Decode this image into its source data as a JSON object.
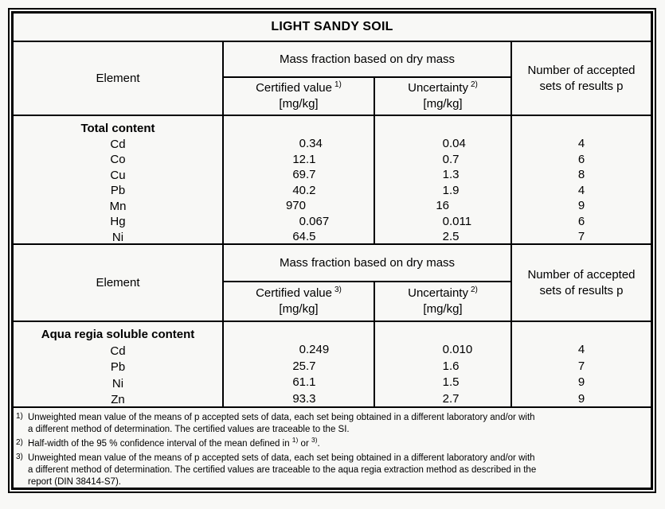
{
  "page": {
    "background": "#f8f8f6",
    "border_color": "#000000"
  },
  "title": "LIGHT SANDY SOIL",
  "sections": [
    {
      "element_label": "Element",
      "mass_fraction_label": "Mass fraction based on dry mass",
      "accepted_line1": "Number of accepted",
      "accepted_line2": "sets of results p",
      "certified_label": "Certified value",
      "certified_sup": "1)",
      "uncertainty_label": "Uncertainty",
      "uncertainty_sup": "2)",
      "unit": "[mg/kg]",
      "group_label": "Total content",
      "rows": [
        {
          "element": "Cd",
          "certified": "0.34",
          "uncertainty": "0.04",
          "p": "4"
        },
        {
          "element": "Co",
          "certified": "12.1",
          "uncertainty": "0.7",
          "p": "6"
        },
        {
          "element": "Cu",
          "certified": "69.7",
          "uncertainty": "1.3",
          "p": "8"
        },
        {
          "element": "Pb",
          "certified": "40.2",
          "uncertainty": "1.9",
          "p": "4"
        },
        {
          "element": "Mn",
          "certified": "970",
          "uncertainty": "16",
          "p": "9"
        },
        {
          "element": "Hg",
          "certified": "0.067",
          "uncertainty": "0.011",
          "p": "6"
        },
        {
          "element": "Ni",
          "certified": "64.5",
          "uncertainty": "2.5",
          "p": "7"
        }
      ]
    },
    {
      "element_label": "Element",
      "mass_fraction_label": "Mass fraction based on dry mass",
      "accepted_line1": "Number of accepted",
      "accepted_line2": "sets of results p",
      "certified_label": "Certified value",
      "certified_sup": "3)",
      "uncertainty_label": "Uncertainty",
      "uncertainty_sup": "2)",
      "unit": "[mg/kg]",
      "group_label": "Aqua regia soluble content",
      "rows": [
        {
          "element": "Cd",
          "certified": "0.249",
          "uncertainty": "0.010",
          "p": "4"
        },
        {
          "element": "Pb",
          "certified": "25.7",
          "uncertainty": "1.6",
          "p": "7"
        },
        {
          "element": "Ni",
          "certified": "61.1",
          "uncertainty": "1.5",
          "p": "9"
        },
        {
          "element": "Zn",
          "certified": "93.3",
          "uncertainty": "2.7",
          "p": "9"
        }
      ]
    }
  ],
  "footnotes": [
    {
      "marker": "1)",
      "lines": [
        "Unweighted mean value of the means of p accepted sets of data, each set being obtained in a different laboratory and/or with",
        "a different method of determination. The certified values are traceable to the SI."
      ]
    },
    {
      "marker": "2)",
      "text_before": "Half-width of the 95 % confidence interval of the mean defined in ",
      "ref1": "1)",
      "text_mid": " or ",
      "ref2": "3)",
      "text_after": "."
    },
    {
      "marker": "3)",
      "lines": [
        "Unweighted mean value of the means of p accepted sets of data, each set being obtained in a different laboratory and/or with",
        "a different method of determination. The certified values are traceable to the aqua regia extraction method as described in the",
        "report (DIN 38414-S7)."
      ]
    }
  ]
}
